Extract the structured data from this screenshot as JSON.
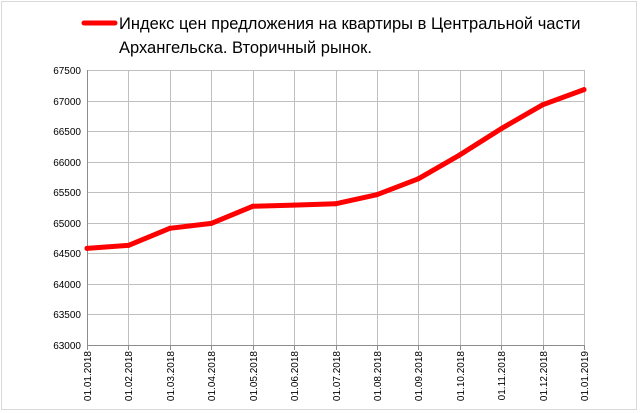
{
  "chart_data": {
    "type": "line",
    "legend_position": "top",
    "grid": true,
    "x_tick_orientation": "vertical",
    "x": [
      "01.01.2018",
      "01.02.2018",
      "01.03.2018",
      "01.04.2018",
      "01.05.2018",
      "01.06.2018",
      "01.07.2018",
      "01.08.2018",
      "01.09.2018",
      "01.10.2018",
      "01.11.2018",
      "01.12.2018",
      "01.01.2019"
    ],
    "y_ticks": [
      "67500",
      "67000",
      "66500",
      "66000",
      "65500",
      "65000",
      "64500",
      "64000",
      "63500",
      "63000"
    ],
    "ylim": [
      63000,
      67500
    ],
    "series": [
      {
        "name": "Индекс цен предложения на квартиры в Центральной части Архангельска. Вторичный рынок.",
        "name_lines": [
          "Индекс цен предложения на квартиры в Центральной части",
          "Архангельска. Вторичный рынок."
        ],
        "color": "#ff0000",
        "values": [
          64580,
          64630,
          64910,
          64990,
          65270,
          65290,
          65310,
          65460,
          65720,
          66110,
          66540,
          66930,
          67180
        ]
      }
    ]
  }
}
